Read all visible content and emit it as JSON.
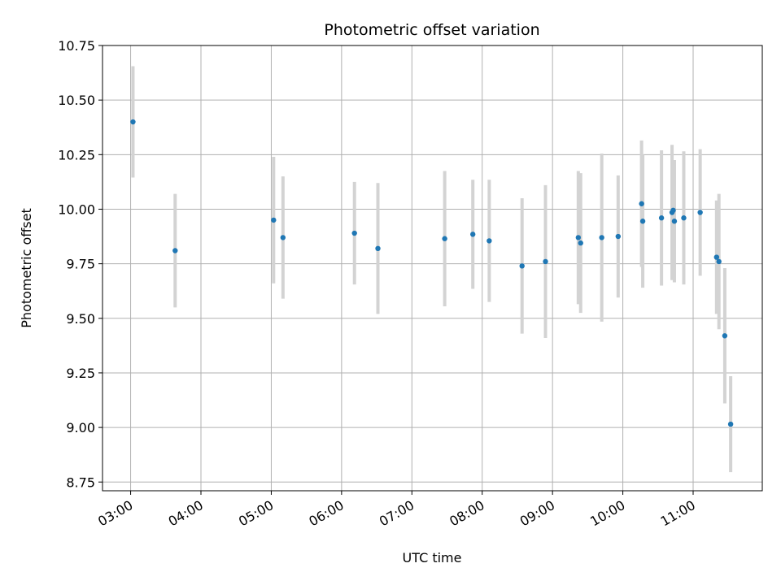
{
  "chart_data": {
    "type": "scatter",
    "title": "Photometric offset variation",
    "xlabel": "UTC time",
    "ylabel": "Photometric offset",
    "x_ticks": [
      "03:00",
      "04:00",
      "05:00",
      "06:00",
      "07:00",
      "08:00",
      "09:00",
      "10:00",
      "11:00"
    ],
    "y_ticks": [
      "8.75",
      "9.00",
      "9.25",
      "9.50",
      "9.75",
      "10.00",
      "10.25",
      "10.50",
      "10.75"
    ],
    "xlim": [
      "02:36",
      "11:59"
    ],
    "ylim": [
      8.71,
      10.75
    ],
    "grid": true,
    "colors": {
      "marker": "#1f77b4",
      "errorbar": "#d3d3d3",
      "grid": "#b0b0b0"
    },
    "points": [
      {
        "x": "03:02",
        "y": 10.4,
        "err": 0.255
      },
      {
        "x": "03:38",
        "y": 9.81,
        "err": 0.26
      },
      {
        "x": "05:02",
        "y": 9.95,
        "err": 0.29
      },
      {
        "x": "05:10",
        "y": 9.87,
        "err": 0.28
      },
      {
        "x": "06:11",
        "y": 9.89,
        "err": 0.235
      },
      {
        "x": "06:31",
        "y": 9.82,
        "err": 0.3
      },
      {
        "x": "07:28",
        "y": 9.865,
        "err": 0.31
      },
      {
        "x": "07:52",
        "y": 9.885,
        "err": 0.25
      },
      {
        "x": "08:06",
        "y": 9.855,
        "err": 0.28
      },
      {
        "x": "08:34",
        "y": 9.74,
        "err": 0.31
      },
      {
        "x": "08:54",
        "y": 9.76,
        "err": 0.35
      },
      {
        "x": "09:22",
        "y": 9.87,
        "err": 0.305
      },
      {
        "x": "09:24",
        "y": 9.845,
        "err": 0.32
      },
      {
        "x": "09:42",
        "y": 9.87,
        "err": 0.385
      },
      {
        "x": "09:56",
        "y": 9.875,
        "err": 0.28
      },
      {
        "x": "10:16",
        "y": 10.025,
        "err": 0.29
      },
      {
        "x": "10:17",
        "y": 9.945,
        "err": 0.305
      },
      {
        "x": "10:33",
        "y": 9.96,
        "err": 0.31
      },
      {
        "x": "10:42",
        "y": 9.985,
        "err": 0.31
      },
      {
        "x": "10:43",
        "y": 9.995,
        "err": 0.23
      },
      {
        "x": "10:44",
        "y": 9.945,
        "err": 0.28
      },
      {
        "x": "10:52",
        "y": 9.96,
        "err": 0.305
      },
      {
        "x": "11:06",
        "y": 9.985,
        "err": 0.29
      },
      {
        "x": "11:20",
        "y": 9.78,
        "err": 0.26
      },
      {
        "x": "11:22",
        "y": 9.76,
        "err": 0.31
      },
      {
        "x": "11:27",
        "y": 9.42,
        "err": 0.31
      },
      {
        "x": "11:32",
        "y": 9.015,
        "err": 0.22
      }
    ]
  }
}
